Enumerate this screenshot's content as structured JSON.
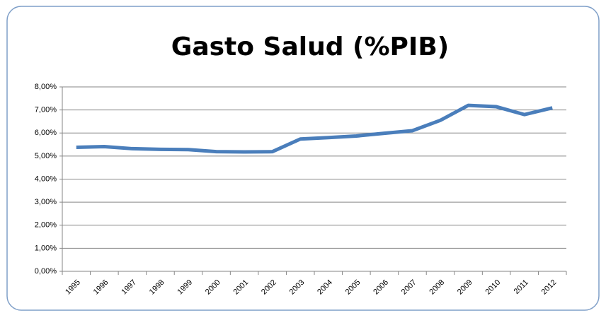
{
  "chart_data": {
    "type": "line",
    "title": "Gasto Salud (%PIB)",
    "categories": [
      "1995",
      "1996",
      "1997",
      "1998",
      "1999",
      "2000",
      "2001",
      "2002",
      "2003",
      "2004",
      "2005",
      "2006",
      "2007",
      "2008",
      "2009",
      "2010",
      "2011",
      "2012"
    ],
    "series": [
      {
        "color": "#4a7ebb",
        "values": [
          5.38,
          5.41,
          5.32,
          5.29,
          5.28,
          5.19,
          5.18,
          5.19,
          5.74,
          5.8,
          5.87,
          5.99,
          6.1,
          6.55,
          7.2,
          7.14,
          6.8,
          7.09
        ]
      }
    ],
    "ylim": [
      0,
      8
    ],
    "yticks": [
      {
        "value": 0,
        "label": "0,00%"
      },
      {
        "value": 1,
        "label": "1,00%"
      },
      {
        "value": 2,
        "label": "2,00%"
      },
      {
        "value": 3,
        "label": "3,00%"
      },
      {
        "value": 4,
        "label": "4,00%"
      },
      {
        "value": 5,
        "label": "5,00%"
      },
      {
        "value": 6,
        "label": "6,00%"
      },
      {
        "value": 7,
        "label": "7,00%"
      },
      {
        "value": 8,
        "label": "8,00%"
      }
    ],
    "grid": true
  }
}
